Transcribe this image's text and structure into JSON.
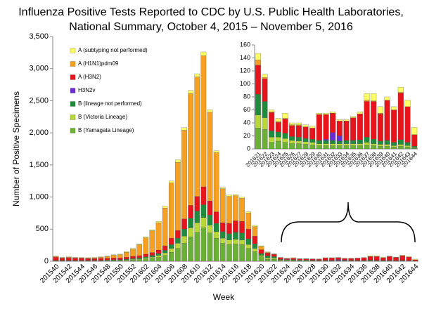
{
  "chart_data": [
    {
      "type": "bar",
      "stacked": true,
      "title": [
        "Influenza Positive Tests Reported to CDC by U.S. Public Health Laboratories,",
        "National Summary, October 4, 2015 – November 5, 2016"
      ],
      "xlabel": "Week",
      "ylabel": "Number of Positive Specimens",
      "legend": "upper left",
      "categories": [
        "201540",
        null,
        "201542",
        null,
        "201544",
        null,
        "201546",
        null,
        "201548",
        null,
        "201550",
        null,
        "201552",
        null,
        "201602",
        null,
        "201604",
        null,
        "201606",
        null,
        "201608",
        null,
        "201610",
        null,
        "201612",
        null,
        "201614",
        null,
        "201616",
        null,
        "201618",
        null,
        "201620",
        null,
        "201622",
        null,
        "201624",
        null,
        "201626",
        null,
        "201628",
        null,
        "201630",
        null,
        "201632",
        null,
        "201634",
        null,
        "201636",
        null,
        "201638",
        null,
        "201640",
        null,
        "201642",
        null,
        "201644"
      ],
      "ylim": [
        0,
        3500
      ],
      "yticks": [
        0,
        500,
        {
          "value": 1000,
          "label": "1,000"
        },
        {
          "value": 1500,
          "label": "1,500"
        },
        {
          "value": 2000,
          "label": "2,000"
        },
        {
          "value": 2500,
          "label": "2,500"
        },
        {
          "value": 3000,
          "label": "3,000"
        },
        {
          "value": 3500,
          "label": "3,500"
        }
      ],
      "series": [
        {
          "name": "A (subtyping not performed)",
          "color": "#ffff66",
          "values": [
            7,
            5,
            7,
            5,
            7,
            5,
            7,
            7,
            7,
            7,
            8,
            10,
            13,
            13,
            15,
            15,
            20,
            30,
            30,
            40,
            40,
            50,
            50,
            60,
            40,
            30,
            20,
            20,
            20,
            20,
            20,
            20,
            10,
            10,
            5,
            3,
            5,
            8,
            3,
            3,
            3,
            3,
            2,
            2,
            2,
            2,
            2,
            2,
            3,
            10,
            11,
            10,
            5,
            5,
            8,
            10,
            11
          ]
        },
        {
          "name": "A (H1N1)pdm09",
          "color": "#f5a020",
          "values": [
            10,
            8,
            10,
            8,
            8,
            10,
            12,
            18,
            25,
            40,
            50,
            77,
            110,
            170,
            255,
            340,
            425,
            590,
            860,
            1060,
            1380,
            1740,
            1860,
            2040,
            1380,
            920,
            530,
            420,
            390,
            360,
            250,
            150,
            50,
            8,
            2,
            1,
            1,
            1,
            1,
            1,
            0,
            0,
            0,
            0,
            0,
            0,
            0,
            0,
            0,
            2,
            1,
            1,
            0,
            0,
            1,
            0,
            0
          ]
        },
        {
          "name": "A (H3N2)",
          "color": "#e8141b",
          "values": [
            50,
            35,
            40,
            35,
            32,
            28,
            28,
            30,
            30,
            30,
            28,
            30,
            35,
            35,
            40,
            45,
            55,
            70,
            100,
            120,
            160,
            200,
            230,
            280,
            220,
            180,
            140,
            160,
            180,
            180,
            150,
            120,
            60,
            45,
            35,
            28,
            15,
            22,
            17,
            18,
            18,
            17,
            40,
            38,
            30,
            23,
            30,
            35,
            40,
            55,
            58,
            42,
            62,
            50,
            72,
            55,
            18
          ]
        },
        {
          "name": "H3N2v",
          "color": "#6a2bd0",
          "values": [
            0,
            0,
            0,
            0,
            0,
            0,
            0,
            0,
            0,
            0,
            0,
            0,
            0,
            0,
            0,
            0,
            0,
            0,
            0,
            0,
            0,
            0,
            0,
            0,
            0,
            0,
            0,
            0,
            0,
            0,
            0,
            0,
            0,
            0,
            0,
            0,
            0,
            0,
            0,
            0,
            0,
            0,
            0,
            2,
            12,
            8,
            0,
            0,
            0,
            0,
            0,
            0,
            0,
            0,
            0,
            0,
            0
          ]
        },
        {
          "name": "B (lineage not performed)",
          "color": "#1e8c3c",
          "values": [
            5,
            5,
            5,
            5,
            5,
            5,
            5,
            6,
            6,
            8,
            8,
            10,
            12,
            15,
            20,
            25,
            30,
            40,
            60,
            80,
            110,
            150,
            180,
            200,
            160,
            130,
            100,
            100,
            110,
            110,
            90,
            70,
            30,
            32,
            25,
            10,
            8,
            8,
            6,
            6,
            5,
            5,
            5,
            5,
            5,
            4,
            5,
            5,
            6,
            8,
            7,
            5,
            6,
            5,
            7,
            5,
            2
          ]
        },
        {
          "name": "B (Victoria Lineage)",
          "color": "#b8d838",
          "values": [
            3,
            2,
            3,
            2,
            3,
            2,
            3,
            3,
            4,
            5,
            6,
            8,
            10,
            12,
            15,
            20,
            30,
            40,
            60,
            80,
            110,
            140,
            150,
            160,
            120,
            100,
            80,
            70,
            70,
            70,
            60,
            50,
            20,
            20,
            18,
            8,
            6,
            6,
            5,
            4,
            4,
            4,
            3,
            3,
            3,
            3,
            3,
            3,
            3,
            4,
            3,
            3,
            3,
            2,
            3,
            2,
            1
          ]
        },
        {
          "name": "B (Yamagata Lineage)",
          "color": "#6ab034",
          "values": [
            5,
            5,
            5,
            5,
            5,
            5,
            5,
            6,
            8,
            10,
            10,
            15,
            20,
            25,
            35,
            45,
            60,
            90,
            140,
            200,
            280,
            380,
            450,
            520,
            440,
            360,
            280,
            260,
            270,
            260,
            200,
            150,
            70,
            32,
            30,
            10,
            12,
            10,
            8,
            8,
            7,
            6,
            5,
            5,
            5,
            5,
            5,
            5,
            5,
            6,
            5,
            4,
            4,
            3,
            4,
            3,
            1
          ]
        }
      ]
    },
    {
      "type": "bar",
      "stacked": true,
      "categories": [
        "201621",
        "201622",
        "201623",
        "201624",
        "201625",
        "201626",
        "201627",
        "201628",
        "201629",
        "201630",
        "201631",
        "201632",
        "201633",
        "201634",
        "201635",
        "201636",
        "201637",
        "201638",
        "201639",
        "201640",
        "201641",
        "201642",
        "201643",
        "201644"
      ],
      "ylim": [
        0,
        160
      ],
      "yticks": [
        0,
        20,
        40,
        60,
        80,
        100,
        120,
        140,
        160
      ],
      "series": [
        {
          "color": "#ffff66",
          "values": [
            10,
            5,
            3,
            5,
            8,
            3,
            3,
            3,
            3,
            2,
            2,
            2,
            2,
            2,
            2,
            3,
            10,
            11,
            10,
            5,
            5,
            8,
            10,
            11
          ]
        },
        {
          "color": "#f5a020",
          "values": [
            8,
            2,
            1,
            1,
            1,
            1,
            1,
            0,
            0,
            0,
            0,
            0,
            0,
            0,
            0,
            0,
            2,
            1,
            1,
            0,
            0,
            1,
            0,
            0
          ]
        },
        {
          "color": "#e8141b",
          "values": [
            45,
            35,
            28,
            15,
            22,
            17,
            18,
            18,
            17,
            40,
            38,
            30,
            23,
            30,
            35,
            40,
            55,
            58,
            42,
            62,
            50,
            72,
            55,
            18
          ]
        },
        {
          "color": "#6a2bd0",
          "values": [
            0,
            0,
            0,
            0,
            0,
            0,
            0,
            0,
            0,
            0,
            2,
            12,
            8,
            0,
            0,
            0,
            0,
            0,
            0,
            0,
            0,
            0,
            0,
            0
          ]
        },
        {
          "color": "#1e8c3c",
          "values": [
            32,
            25,
            10,
            8,
            8,
            6,
            6,
            5,
            5,
            5,
            5,
            5,
            4,
            5,
            5,
            6,
            8,
            7,
            5,
            6,
            5,
            7,
            5,
            2
          ]
        },
        {
          "color": "#b8d838",
          "values": [
            20,
            18,
            8,
            6,
            6,
            5,
            4,
            4,
            4,
            3,
            3,
            3,
            3,
            3,
            3,
            3,
            4,
            3,
            3,
            3,
            2,
            3,
            2,
            1
          ]
        },
        {
          "color": "#6ab034",
          "values": [
            32,
            30,
            10,
            12,
            10,
            8,
            8,
            7,
            6,
            5,
            5,
            5,
            5,
            5,
            5,
            5,
            6,
            5,
            4,
            4,
            3,
            4,
            3,
            1
          ]
        }
      ]
    }
  ]
}
